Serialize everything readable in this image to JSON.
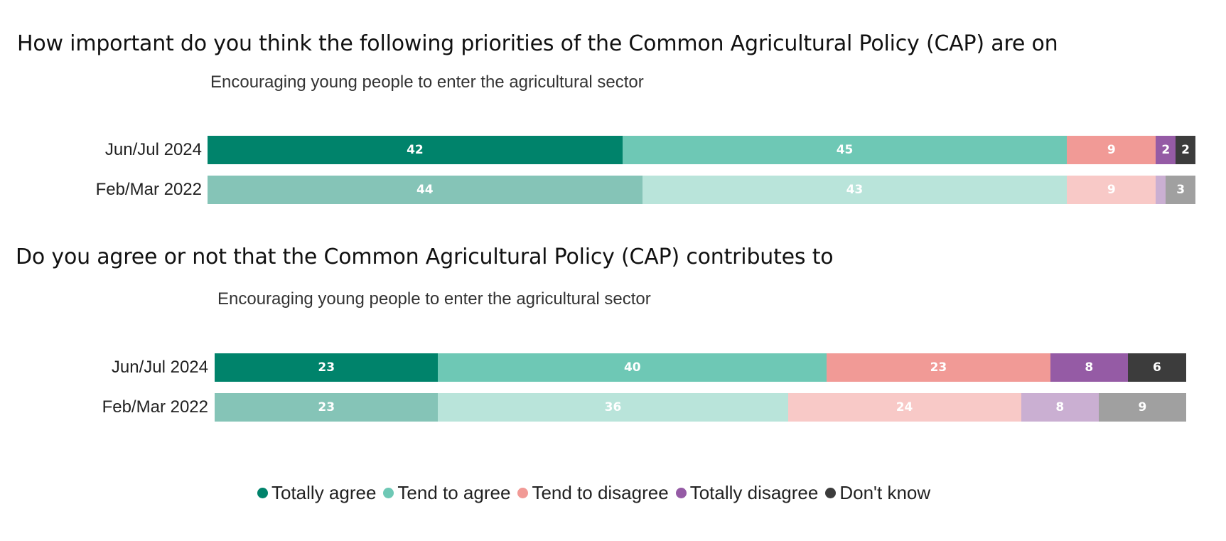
{
  "questions": [
    {
      "title": "How important do you think the following priorities of the Common Agricultural Policy (CAP) are on",
      "subtitle": "Encouraging young people to enter the agricultural sector"
    },
    {
      "title": "Do you agree or not that the Common Agricultural Policy (CAP) contributes to",
      "subtitle": "Encouraging young people to enter the agricultural sector"
    }
  ],
  "legend": [
    {
      "label": "Totally agree",
      "color": "#00836B"
    },
    {
      "label": "Tend to agree",
      "color": "#6EC8B5"
    },
    {
      "label": "Tend to disagree",
      "color": "#F19A96"
    },
    {
      "label": "Totally disagree",
      "color": "#955BA5"
    },
    {
      "label": "Don't know",
      "color": "#3C3C3C"
    }
  ],
  "chart_data": [
    {
      "type": "bar",
      "orientation": "horizontal-stacked",
      "title": "How important do you think the following priorities of the Common Agricultural Policy (CAP) are on",
      "subtitle": "Encouraging young people to enter the agricultural sector",
      "categories": [
        "Jun/Jul 2024",
        "Feb/Mar 2022"
      ],
      "series": [
        {
          "name": "Totally agree",
          "values": [
            42,
            44
          ]
        },
        {
          "name": "Tend to agree",
          "values": [
            45,
            43
          ]
        },
        {
          "name": "Tend to disagree",
          "values": [
            9,
            9
          ]
        },
        {
          "name": "Totally disagree",
          "values": [
            2,
            1
          ]
        },
        {
          "name": "Don't know",
          "values": [
            2,
            3
          ]
        }
      ],
      "labels": [
        [
          "42",
          "45",
          "9",
          "2",
          "2"
        ],
        [
          "44",
          "43",
          "9",
          "",
          "3"
        ]
      ]
    },
    {
      "type": "bar",
      "orientation": "horizontal-stacked",
      "title": "Do you agree or not that the Common Agricultural Policy (CAP) contributes to",
      "subtitle": "Encouraging young people to enter the agricultural sector",
      "categories": [
        "Jun/Jul 2024",
        "Feb/Mar 2022"
      ],
      "series": [
        {
          "name": "Totally agree",
          "values": [
            23,
            23
          ]
        },
        {
          "name": "Tend to agree",
          "values": [
            40,
            36
          ]
        },
        {
          "name": "Tend to disagree",
          "values": [
            23,
            24
          ]
        },
        {
          "name": "Totally disagree",
          "values": [
            8,
            8
          ]
        },
        {
          "name": "Don't know",
          "values": [
            6,
            9
          ]
        }
      ],
      "labels": [
        [
          "23",
          "40",
          "23",
          "8",
          "6"
        ],
        [
          "23",
          "36",
          "24",
          "8",
          "9"
        ]
      ]
    }
  ],
  "colors": {
    "current": [
      "#00836B",
      "#6EC8B5",
      "#F19A96",
      "#955BA5",
      "#3C3C3C"
    ],
    "previous": [
      "#85C4B7",
      "#B9E4DA",
      "#F8C9C7",
      "#CAAFD2",
      "#A0A0A0"
    ]
  }
}
